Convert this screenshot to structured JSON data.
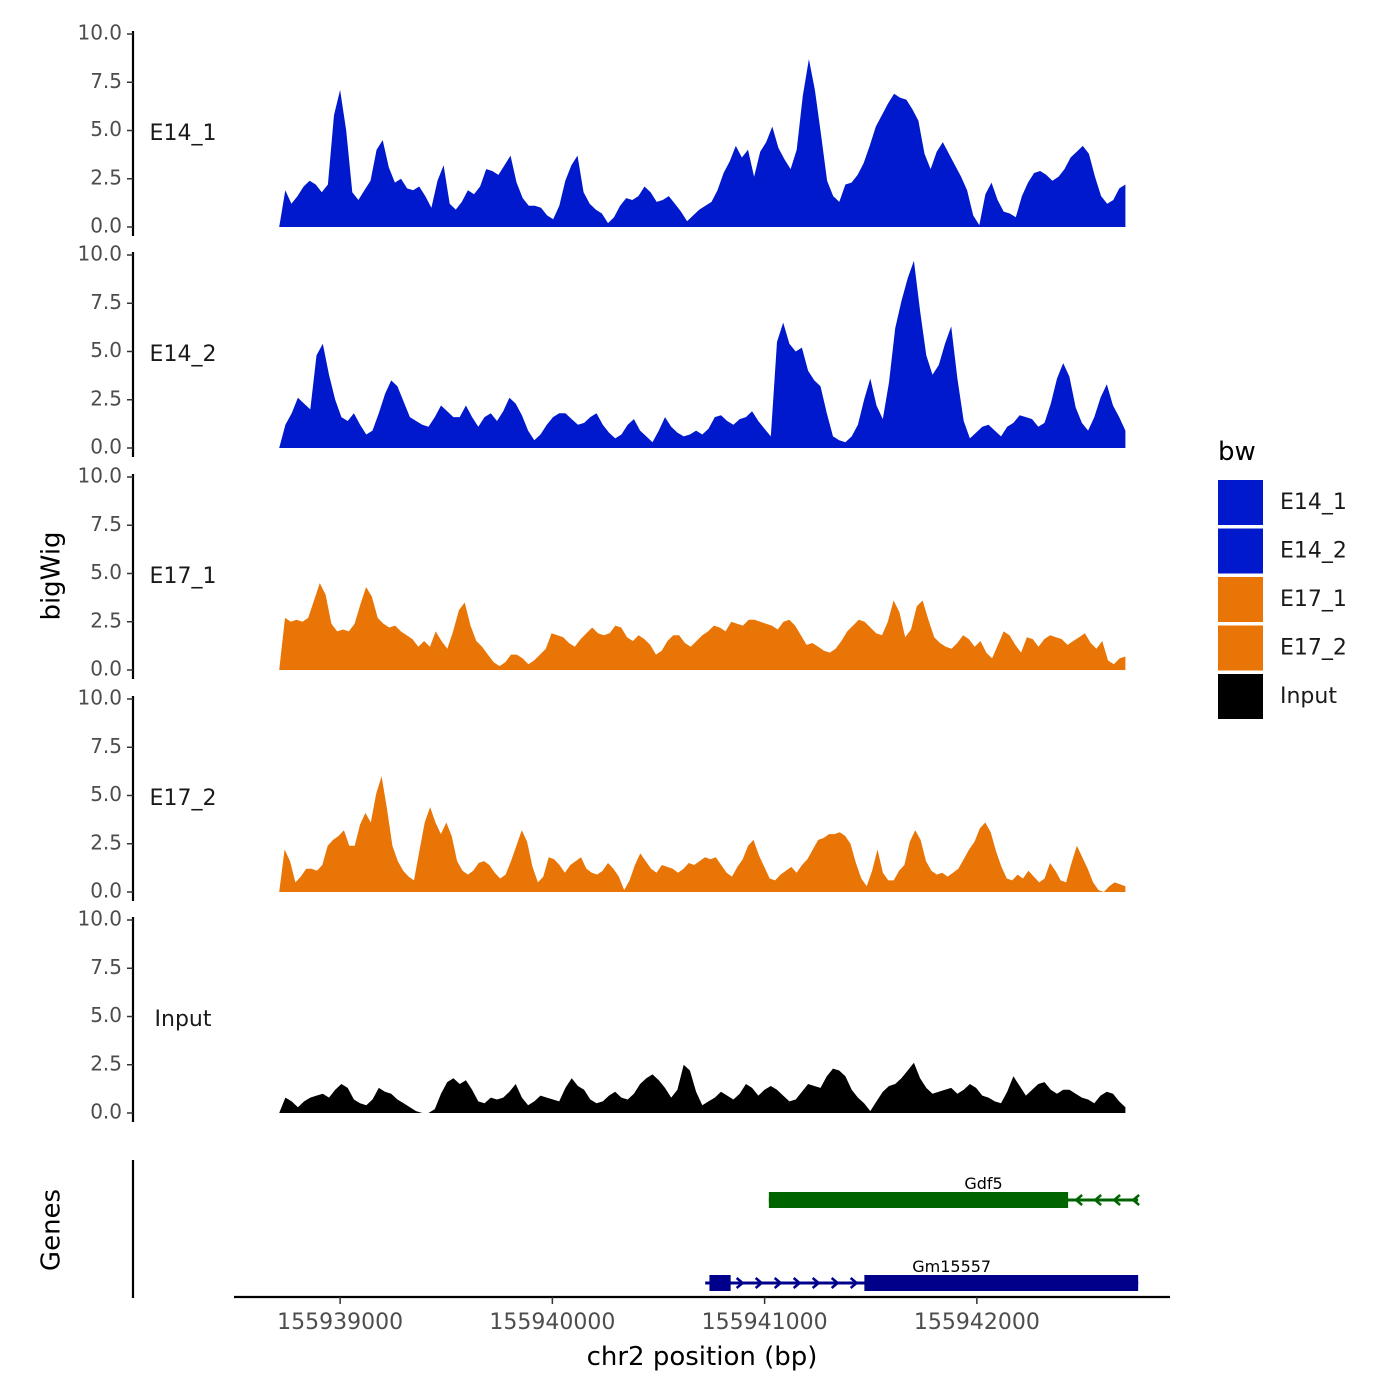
{
  "chart_data": {
    "type": "area",
    "ylabel": "bigWig",
    "xlabel": "chr2 position (bp)",
    "genes_label": "Genes",
    "ylim": [
      0,
      10
    ],
    "yticks": [
      "0.0",
      "2.5",
      "5.0",
      "7.5",
      "10.0"
    ],
    "xlim": [
      155938500,
      155942910
    ],
    "data_range": [
      155938713,
      155942700
    ],
    "xticks": [
      155939000,
      155940000,
      155941000,
      155942000
    ],
    "xtick_labels": [
      "155939000",
      "155940000",
      "155941000",
      "155942000"
    ],
    "legend": {
      "title": "bw",
      "entries": [
        {
          "label": "E14_1",
          "color": "#0019CC"
        },
        {
          "label": "E14_2",
          "color": "#0019CC"
        },
        {
          "label": "E17_1",
          "color": "#E87506"
        },
        {
          "label": "E17_2",
          "color": "#E87506"
        },
        {
          "label": "Input",
          "color": "#000000"
        }
      ]
    },
    "tracks": [
      {
        "name": "E14_1",
        "color": "#0019CC",
        "values": [
          0.0,
          1.9,
          1.2,
          1.6,
          2.1,
          2.4,
          2.2,
          1.8,
          2.2,
          5.8,
          7.1,
          5.0,
          1.8,
          1.4,
          1.9,
          2.4,
          4.0,
          4.5,
          3.1,
          2.3,
          2.5,
          2.0,
          1.9,
          2.1,
          1.6,
          1.0,
          2.4,
          3.2,
          1.2,
          0.9,
          1.3,
          1.9,
          1.7,
          2.1,
          3.0,
          2.9,
          2.7,
          3.2,
          3.7,
          2.3,
          1.5,
          1.1,
          1.1,
          1.0,
          0.6,
          0.4,
          1.1,
          2.4,
          3.2,
          3.7,
          1.8,
          1.2,
          0.9,
          0.7,
          0.2,
          0.5,
          1.1,
          1.5,
          1.4,
          1.6,
          2.1,
          1.8,
          1.3,
          1.4,
          1.6,
          1.2,
          0.8,
          0.3,
          0.6,
          0.9,
          1.1,
          1.3,
          1.9,
          2.8,
          3.4,
          4.2,
          3.6,
          4.0,
          2.6,
          3.9,
          4.4,
          5.2,
          4.1,
          3.5,
          3.0,
          4.0,
          6.8,
          8.7,
          7.1,
          4.8,
          2.4,
          1.6,
          1.3,
          2.2,
          2.3,
          2.7,
          3.3,
          4.2,
          5.2,
          5.8,
          6.4,
          6.9,
          6.7,
          6.6,
          6.1,
          5.5,
          3.8,
          3.0,
          3.9,
          4.4,
          3.8,
          3.2,
          2.6,
          1.9,
          0.6,
          0.1,
          1.7,
          2.3,
          1.4,
          0.8,
          0.7,
          0.5,
          1.6,
          2.3,
          2.8,
          2.9,
          2.7,
          2.4,
          2.6,
          3.0,
          3.6,
          3.9,
          4.2,
          3.8,
          2.6,
          1.6,
          1.2,
          1.4,
          2.0,
          2.2
        ]
      },
      {
        "name": "E14_2",
        "color": "#0019CC",
        "values": [
          0.0,
          1.2,
          1.8,
          2.6,
          2.3,
          2.0,
          4.8,
          5.4,
          3.8,
          2.5,
          1.6,
          1.4,
          1.8,
          1.2,
          0.7,
          0.9,
          1.8,
          2.8,
          3.5,
          3.2,
          2.4,
          1.6,
          1.4,
          1.2,
          1.1,
          1.6,
          2.2,
          1.9,
          1.6,
          1.6,
          2.2,
          1.6,
          1.1,
          1.6,
          1.8,
          1.4,
          1.9,
          2.6,
          2.3,
          1.7,
          0.9,
          0.4,
          0.7,
          1.2,
          1.6,
          1.8,
          1.8,
          1.5,
          1.2,
          1.3,
          1.6,
          1.8,
          1.2,
          0.8,
          0.5,
          0.7,
          1.2,
          1.5,
          0.9,
          0.6,
          0.3,
          0.9,
          1.6,
          1.1,
          0.8,
          0.6,
          0.7,
          0.9,
          0.7,
          1.0,
          1.6,
          1.7,
          1.4,
          1.2,
          1.5,
          1.6,
          1.9,
          1.4,
          1.0,
          0.6,
          5.5,
          6.5,
          5.4,
          5.0,
          5.2,
          4.0,
          3.5,
          3.2,
          1.8,
          0.6,
          0.4,
          0.3,
          0.6,
          1.2,
          2.5,
          3.6,
          2.2,
          1.5,
          3.4,
          6.2,
          7.6,
          8.8,
          9.7,
          7.1,
          4.8,
          3.8,
          4.3,
          5.4,
          6.3,
          3.6,
          1.4,
          0.5,
          0.8,
          1.1,
          1.2,
          0.9,
          0.6,
          1.1,
          1.3,
          1.7,
          1.6,
          1.5,
          1.1,
          1.3,
          2.3,
          3.6,
          4.4,
          3.7,
          2.1,
          1.3,
          0.9,
          1.6,
          2.6,
          3.3,
          2.2,
          1.6,
          0.9
        ]
      },
      {
        "name": "E17_1",
        "color": "#E87506",
        "values": [
          0.0,
          2.7,
          2.5,
          2.6,
          2.5,
          2.7,
          3.6,
          4.5,
          3.9,
          2.4,
          2.0,
          2.1,
          2.0,
          2.4,
          3.4,
          4.3,
          3.8,
          2.7,
          2.4,
          2.2,
          2.3,
          2.0,
          1.8,
          1.6,
          1.2,
          1.5,
          1.2,
          2.0,
          1.5,
          1.1,
          2.0,
          3.1,
          3.5,
          2.3,
          1.5,
          1.2,
          0.8,
          0.4,
          0.2,
          0.4,
          0.8,
          0.8,
          0.6,
          0.3,
          0.5,
          0.8,
          1.1,
          1.9,
          1.8,
          1.7,
          1.4,
          1.2,
          1.6,
          1.9,
          2.2,
          1.9,
          1.8,
          1.9,
          2.3,
          2.2,
          1.7,
          1.5,
          1.8,
          1.6,
          1.3,
          0.8,
          1.0,
          1.5,
          1.8,
          1.8,
          1.4,
          1.2,
          1.5,
          1.8,
          2.0,
          2.3,
          2.2,
          2.0,
          2.5,
          2.4,
          2.3,
          2.6,
          2.6,
          2.5,
          2.4,
          2.3,
          2.1,
          2.5,
          2.6,
          2.3,
          1.8,
          1.3,
          1.4,
          1.2,
          1.0,
          0.9,
          1.1,
          1.5,
          2.0,
          2.3,
          2.6,
          2.5,
          2.2,
          1.9,
          1.8,
          2.5,
          3.6,
          3.0,
          1.7,
          2.1,
          3.3,
          3.6,
          2.6,
          1.7,
          1.4,
          1.2,
          1.1,
          1.4,
          1.8,
          1.6,
          1.2,
          1.5,
          0.9,
          0.6,
          1.3,
          2.0,
          1.8,
          1.3,
          0.9,
          1.7,
          1.6,
          1.2,
          1.6,
          1.8,
          1.7,
          1.6,
          1.3,
          1.5,
          1.7,
          1.9,
          1.4,
          1.1,
          1.5,
          0.5,
          0.3,
          0.6,
          0.7
        ]
      },
      {
        "name": "E17_2",
        "color": "#E87506",
        "values": [
          0.0,
          2.2,
          1.6,
          0.5,
          0.8,
          1.2,
          1.2,
          1.1,
          1.4,
          2.4,
          2.7,
          2.9,
          3.2,
          2.4,
          2.4,
          3.5,
          4.1,
          3.6,
          5.1,
          6.0,
          4.3,
          2.4,
          1.6,
          1.1,
          0.8,
          0.6,
          2.1,
          3.6,
          4.4,
          3.6,
          3.0,
          3.6,
          2.9,
          1.6,
          1.1,
          0.9,
          1.1,
          1.5,
          1.6,
          1.4,
          1.0,
          0.7,
          0.9,
          1.6,
          2.4,
          3.2,
          2.6,
          1.3,
          0.5,
          0.8,
          1.8,
          1.7,
          1.4,
          1.0,
          1.4,
          1.6,
          1.8,
          1.2,
          1.0,
          0.9,
          1.1,
          1.5,
          1.2,
          0.8,
          0.1,
          0.6,
          1.4,
          2.0,
          1.6,
          1.2,
          1.0,
          1.4,
          1.3,
          1.2,
          1.0,
          1.2,
          1.5,
          1.4,
          1.6,
          1.8,
          1.7,
          1.8,
          1.4,
          1.0,
          0.8,
          1.3,
          1.7,
          2.4,
          2.7,
          1.9,
          1.3,
          0.7,
          0.6,
          0.9,
          1.1,
          1.3,
          1.0,
          1.4,
          1.7,
          2.2,
          2.7,
          2.8,
          3.0,
          3.0,
          3.1,
          2.9,
          2.5,
          1.5,
          0.7,
          0.3,
          1.1,
          2.2,
          1.0,
          0.6,
          0.6,
          1.1,
          1.4,
          2.6,
          3.2,
          2.7,
          1.6,
          1.1,
          0.9,
          1.0,
          0.8,
          1.0,
          1.2,
          1.7,
          2.2,
          2.6,
          3.3,
          3.6,
          3.1,
          2.1,
          1.3,
          0.7,
          0.6,
          0.9,
          0.7,
          1.1,
          0.8,
          0.5,
          0.7,
          1.5,
          1.1,
          0.6,
          0.5,
          1.5,
          2.4,
          1.8,
          1.2,
          0.5,
          0.1,
          0.0,
          0.3,
          0.5,
          0.4,
          0.3
        ]
      },
      {
        "name": "Input",
        "color": "#000000",
        "values": [
          0.0,
          0.8,
          0.6,
          0.3,
          0.6,
          0.8,
          0.9,
          1.0,
          0.8,
          1.2,
          1.5,
          1.3,
          0.7,
          0.5,
          0.4,
          0.7,
          1.3,
          1.1,
          1.0,
          0.7,
          0.5,
          0.3,
          0.1,
          0.0,
          0.0,
          0.2,
          1.0,
          1.6,
          1.8,
          1.5,
          1.7,
          1.2,
          0.6,
          0.5,
          0.8,
          0.7,
          0.8,
          1.1,
          1.5,
          0.8,
          0.4,
          0.6,
          0.9,
          0.8,
          0.7,
          0.6,
          1.3,
          1.8,
          1.4,
          1.2,
          0.7,
          0.5,
          0.6,
          0.9,
          1.1,
          0.8,
          0.7,
          1.0,
          1.5,
          1.8,
          2.0,
          1.7,
          1.3,
          0.8,
          1.2,
          2.5,
          2.2,
          1.1,
          0.4,
          0.6,
          0.8,
          1.1,
          0.9,
          0.7,
          1.0,
          1.5,
          1.3,
          0.9,
          1.2,
          1.4,
          1.2,
          0.9,
          0.6,
          0.7,
          1.1,
          1.5,
          1.4,
          1.3,
          1.9,
          2.3,
          2.2,
          1.9,
          1.2,
          0.8,
          0.5,
          0.1,
          0.6,
          1.1,
          1.4,
          1.5,
          1.8,
          2.2,
          2.6,
          1.8,
          1.3,
          1.0,
          1.1,
          1.2,
          1.3,
          1.0,
          1.2,
          1.5,
          1.3,
          0.9,
          0.8,
          0.6,
          0.5,
          1.1,
          1.9,
          1.4,
          0.9,
          1.2,
          1.5,
          1.6,
          1.2,
          1.0,
          1.2,
          1.2,
          1.0,
          0.8,
          0.7,
          0.5,
          0.9,
          1.1,
          1.0,
          0.6,
          0.3
        ]
      }
    ],
    "genes": [
      {
        "name": "Gdf5",
        "strand": "-",
        "color": "#006400",
        "start": 155941020,
        "end": 155942760,
        "thick_start": 155941020,
        "thick_end": 155942430,
        "row": 0
      },
      {
        "name": "Gm15557",
        "strand": "+",
        "color": "#00008B",
        "start": 155940720,
        "end": 155942760,
        "exons": [
          [
            155940740,
            155940840
          ],
          [
            155941470,
            155942760
          ]
        ],
        "row": 1
      }
    ]
  }
}
